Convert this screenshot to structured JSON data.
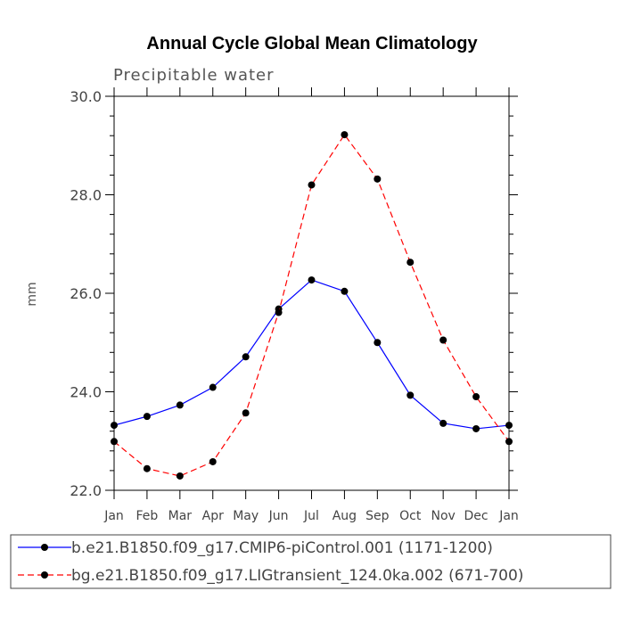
{
  "chart_data": {
    "type": "line",
    "title": "Annual Cycle Global Mean Climatology",
    "subtitle": "Precipitable water",
    "xlabel": "",
    "ylabel": "mm",
    "categories": [
      "Jan",
      "Feb",
      "Mar",
      "Apr",
      "May",
      "Jun",
      "Jul",
      "Aug",
      "Sep",
      "Oct",
      "Nov",
      "Dec",
      "Jan"
    ],
    "ylim": [
      22.0,
      30.0
    ],
    "yticks": [
      "22.0",
      "24.0",
      "26.0",
      "28.0",
      "30.0"
    ],
    "grid": false,
    "legend_position": "bottom",
    "series": [
      {
        "name": "b.e21.B1850.f09_g17.CMIP6-piControl.001 (1171-1200)",
        "color": "#0000ff",
        "dash": "solid",
        "values": [
          23.32,
          23.5,
          23.73,
          24.09,
          24.71,
          25.68,
          26.27,
          26.04,
          25.0,
          23.93,
          23.36,
          23.25,
          23.32
        ]
      },
      {
        "name": "bg.e21.B1850.f09_g17.LIGtransient_124.0ka.002 (671-700)",
        "color": "#ff0000",
        "dash": "dashed",
        "values": [
          22.99,
          22.44,
          22.29,
          22.58,
          23.57,
          25.61,
          28.2,
          29.22,
          28.32,
          26.63,
          25.05,
          23.9,
          22.99
        ]
      }
    ]
  }
}
